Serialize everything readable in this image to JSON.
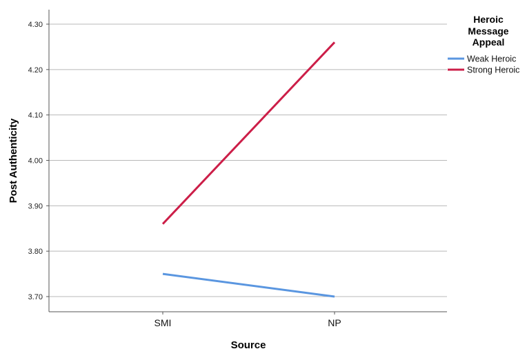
{
  "chart_data": {
    "type": "line",
    "categories": [
      "SMI",
      "NP"
    ],
    "series": [
      {
        "name": "Weak Heroic",
        "values": [
          3.75,
          3.7
        ],
        "color": "#5a96e0"
      },
      {
        "name": "Strong Heroic",
        "values": [
          3.86,
          4.26
        ],
        "color": "#cc1e48"
      }
    ],
    "xlabel": "Source",
    "ylabel": "Post Authenticity",
    "ylim": [
      3.68,
      4.33
    ],
    "yticks": [
      "3.70",
      "3.80",
      "3.90",
      "4.00",
      "4.10",
      "4.20",
      "4.30"
    ],
    "legend_title": [
      "Heroic",
      "Message",
      "Appeal"
    ],
    "legend_position": "top-right",
    "grid": "horizontal"
  }
}
